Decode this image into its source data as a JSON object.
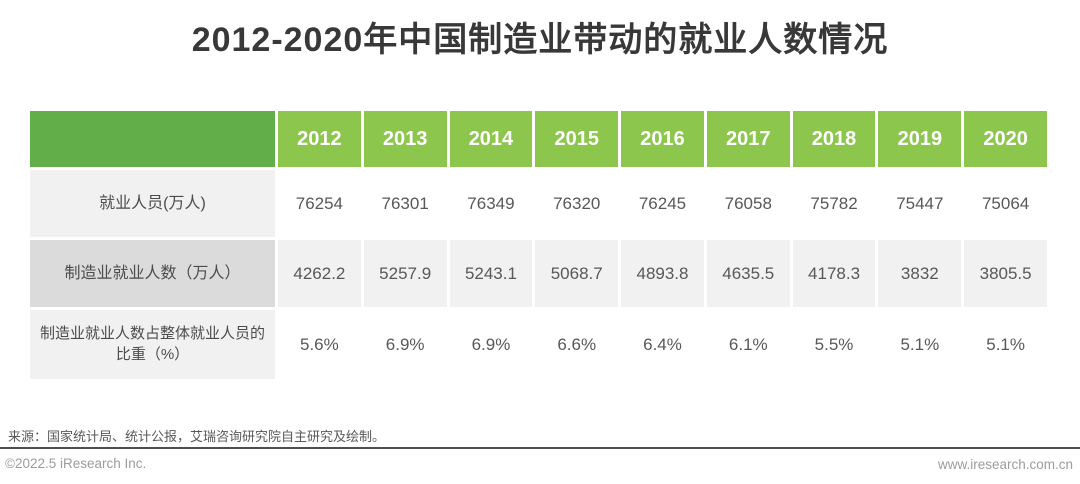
{
  "header": {
    "title": "2012-2020年中国制造业带动的就业人数情况"
  },
  "table": {
    "years": [
      "2012",
      "2013",
      "2014",
      "2015",
      "2016",
      "2017",
      "2018",
      "2019",
      "2020"
    ],
    "rows": [
      {
        "label": "就业人员(万人)",
        "values": [
          "76254",
          "76301",
          "76349",
          "76320",
          "76245",
          "76058",
          "75782",
          "75447",
          "75064"
        ]
      },
      {
        "label": "制造业就业人数（万人）",
        "values": [
          "4262.2",
          "5257.9",
          "5243.1",
          "5068.7",
          "4893.8",
          "4635.5",
          "4178.3",
          "3832",
          "3805.5"
        ]
      },
      {
        "label": "制造业就业人数占整体就业人员的比重（%）",
        "values": [
          "5.6%",
          "6.9%",
          "6.9%",
          "6.6%",
          "6.4%",
          "6.1%",
          "5.5%",
          "5.1%",
          "5.1%"
        ]
      }
    ]
  },
  "chart_data": {
    "type": "table",
    "title": "2012-2020年中国制造业带动的就业人数情况",
    "categories": [
      "2012",
      "2013",
      "2014",
      "2015",
      "2016",
      "2017",
      "2018",
      "2019",
      "2020"
    ],
    "series": [
      {
        "name": "就业人员(万人)",
        "values": [
          76254,
          76301,
          76349,
          76320,
          76245,
          76058,
          75782,
          75447,
          75064
        ]
      },
      {
        "name": "制造业就业人数（万人）",
        "values": [
          4262.2,
          5257.9,
          5243.1,
          5068.7,
          4893.8,
          4635.5,
          4178.3,
          3832,
          3805.5
        ]
      },
      {
        "name": "制造业就业人数占整体就业人员的比重（%）",
        "values": [
          5.6,
          6.9,
          6.9,
          6.6,
          6.4,
          6.1,
          5.5,
          5.1,
          5.1
        ]
      }
    ]
  },
  "footer": {
    "source": "来源：国家统计局、统计公报，艾瑞咨询研究院自主研究及绘制。",
    "copyright": "©2022.5 iResearch Inc.",
    "website": "www.iresearch.com.cn"
  },
  "colors": {
    "header_corner_green": "#62ae49",
    "header_year_green": "#8dc64d",
    "row_label_light_gray": "#f1f1f1",
    "row_label_mid_gray": "#dbdbdb",
    "divider_dark_gray": "#4f4f51",
    "title_text": "#383838",
    "cell_text": "#58585a",
    "footer_text": "#9c9c9c"
  }
}
